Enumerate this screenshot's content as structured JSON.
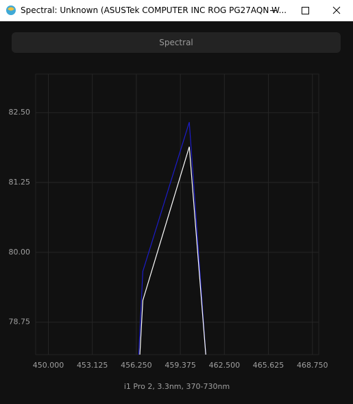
{
  "window": {
    "title": "Spectral: Unknown (ASUSTek COMPUTER INC ROG PG27AQN W...",
    "button": "Spectral"
  },
  "chart_data": {
    "type": "line",
    "x_label": "i1 Pro 2, 3.3nm, 370-730nm",
    "series": [
      {
        "color": "#1c1cc8",
        "x": [
          456.42,
          456.71,
          460.01,
          461.18
        ],
        "values": [
          78.17,
          79.66,
          82.33,
          78.17
        ]
      },
      {
        "color": "#ffffff",
        "x": [
          456.5,
          456.71,
          460.01,
          461.18
        ],
        "values": [
          78.17,
          79.14,
          81.89,
          78.17
        ]
      }
    ],
    "xlim": [
      449.1,
      469.2
    ],
    "xticks": [
      {
        "value": 450,
        "label": "450.000"
      },
      {
        "value": 453.125,
        "label": "453.125"
      },
      {
        "value": 456.25,
        "label": "456.250"
      },
      {
        "value": 459.375,
        "label": "459.375"
      },
      {
        "value": 462.5,
        "label": "462.500"
      },
      {
        "value": 465.625,
        "label": "465.625"
      },
      {
        "value": 468.75,
        "label": "468.750"
      }
    ],
    "ylim": [
      78.17,
      83.19
    ],
    "yticks": [
      {
        "value": 78.75,
        "label": "78.75"
      },
      {
        "value": 80,
        "label": "80.00"
      },
      {
        "value": 81.25,
        "label": "81.25"
      },
      {
        "value": 82.5,
        "label": "82.50"
      }
    ],
    "grid": true
  }
}
